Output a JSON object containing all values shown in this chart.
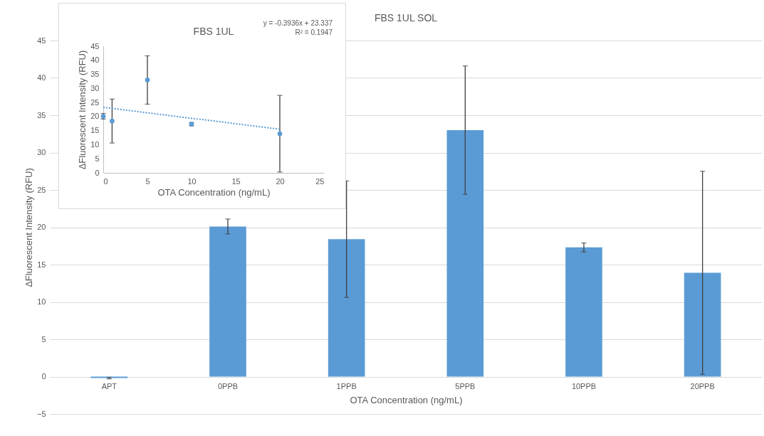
{
  "chart_data": [
    {
      "type": "bar",
      "title": "FBS 1UL SOL",
      "xlabel": "OTA Concentration (ng/mL)",
      "ylabel": "ΔFluorescent Intensity (RFU)",
      "categories": [
        "APT",
        "0PPB",
        "1PPB",
        "5PPB",
        "10PPB",
        "20PPB"
      ],
      "series": [
        {
          "color": "#5b9bd5",
          "values": [
            -0.2,
            20.1,
            18.4,
            33.0,
            17.3,
            13.9
          ],
          "errors": [
            0.1,
            1.0,
            7.8,
            8.6,
            0.6,
            13.6
          ]
        }
      ],
      "ylim": [
        -5,
        45
      ],
      "yticks": [
        -5,
        0,
        5,
        10,
        15,
        20,
        25,
        30,
        35,
        40,
        45
      ],
      "grid": "y"
    },
    {
      "type": "scatter",
      "title": "FBS 1UL",
      "xlabel": "OTA Concentration (ng/mL)",
      "ylabel": "ΔFluorescent Intensity (RFU)",
      "annotations": [
        "y = -0.3936x + 23.337",
        "R² = 0.1947"
      ],
      "series": [
        {
          "x": [
            0,
            1,
            5,
            10,
            20
          ],
          "values": [
            20.1,
            18.4,
            33.0,
            17.3,
            13.9
          ],
          "errors": [
            1.0,
            7.8,
            8.6,
            0.6,
            13.6
          ],
          "color": "#5b9bd5",
          "marker": "circle"
        },
        {
          "type": "line",
          "x": [
            0,
            20
          ],
          "values": [
            23.3,
            15.5
          ],
          "color": "#5b9bd5",
          "line_style": "dotted"
        }
      ],
      "xlim": [
        0,
        25
      ],
      "xticks": [
        0,
        5,
        10,
        15,
        20,
        25
      ],
      "ylim": [
        0,
        45
      ],
      "yticks": [
        0,
        5,
        10,
        15,
        20,
        25,
        30,
        35,
        40,
        45
      ],
      "grid": false
    }
  ]
}
